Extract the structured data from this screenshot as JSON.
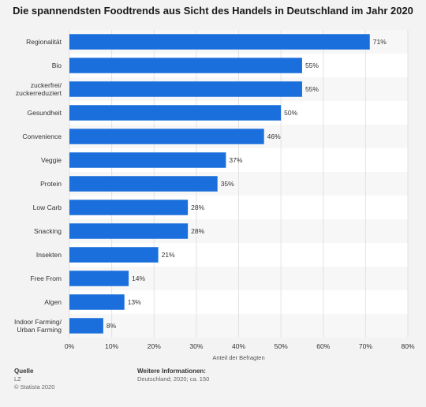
{
  "title": "Die spannendsten Foodtrends aus Sicht des Handels in Deutschland im Jahr 2020",
  "chart_data": {
    "type": "bar",
    "orientation": "horizontal",
    "categories": [
      [
        "Regionalität"
      ],
      [
        "Bio"
      ],
      [
        "zuckerfrei/",
        "zuckerreduziert"
      ],
      [
        "Gesundheit"
      ],
      [
        "Convenience"
      ],
      [
        "Veggie"
      ],
      [
        "Protein"
      ],
      [
        "Low Carb"
      ],
      [
        "Snacking"
      ],
      [
        "Insekten"
      ],
      [
        "Free From"
      ],
      [
        "Algen"
      ],
      [
        "Indoor Farming/",
        "Urban Farming"
      ]
    ],
    "values": [
      71,
      55,
      55,
      50,
      46,
      37,
      35,
      28,
      28,
      21,
      14,
      13,
      8
    ],
    "value_labels": [
      "71%",
      "55%",
      "55%",
      "50%",
      "46%",
      "37%",
      "35%",
      "28%",
      "28%",
      "21%",
      "14%",
      "13%",
      "8%"
    ],
    "xlim": [
      0,
      80
    ],
    "ticks": [
      0,
      10,
      20,
      30,
      40,
      50,
      60,
      70,
      80
    ],
    "tick_labels": [
      "0%",
      "10%",
      "20%",
      "30%",
      "40%",
      "50%",
      "60%",
      "70%",
      "80%"
    ],
    "xlabel": "Anteil der Befragten",
    "grid": true,
    "bar_color": "#1a6fdc"
  },
  "footer": {
    "source_head": "Quelle",
    "source": "LZ",
    "copyright": "© Statista 2020",
    "info_head": "Weitere Informationen:",
    "info": "Deutschland; 2020; ca. 150"
  }
}
